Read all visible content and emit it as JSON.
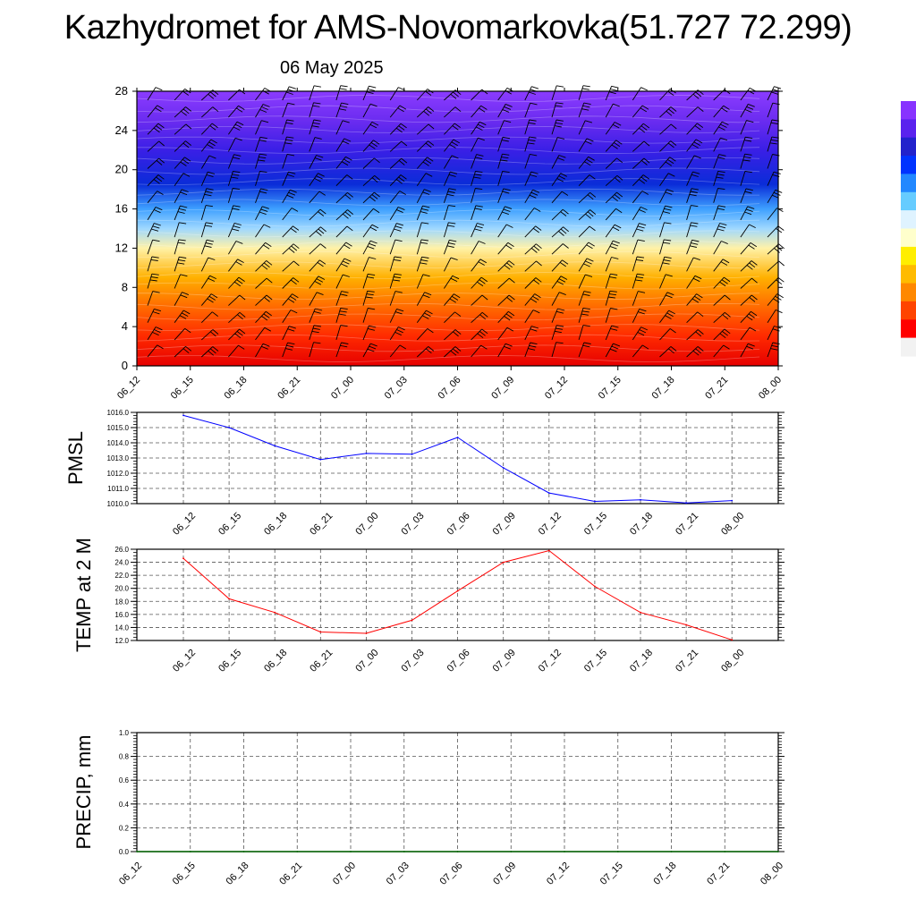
{
  "header": {
    "title": "Kazhydromet for AMS-Novomarkovka(51.727 72.299)",
    "date": "06 May 2025"
  },
  "colorbar": {
    "colors": [
      "#f2f2f2",
      "#ff0000",
      "#ff4400",
      "#ff8800",
      "#ffbb00",
      "#ffee00",
      "#ffffcc",
      "#dff3ff",
      "#66ccff",
      "#2288ff",
      "#0033ff",
      "#2222cc",
      "#5a22ee",
      "#8833ff"
    ]
  },
  "chart_data": [
    {
      "type": "heatmap",
      "panel": "cross-section",
      "x_ticks": [
        "06_12",
        "06_15",
        "06_18",
        "06_21",
        "07_00",
        "07_03",
        "07_06",
        "07_09",
        "07_12",
        "07_15",
        "07_18",
        "07_21",
        "08_00"
      ],
      "y_ticks": [
        0,
        4,
        8,
        12,
        16,
        20,
        24,
        28
      ],
      "ylim": [
        0,
        28
      ],
      "color_by_level": [
        {
          "level": 0,
          "color": "#e60000"
        },
        {
          "level": 3,
          "color": "#ff2a00"
        },
        {
          "level": 6,
          "color": "#ff6a00"
        },
        {
          "level": 9,
          "color": "#ffb000"
        },
        {
          "level": 12,
          "color": "#fff2a8"
        },
        {
          "level": 14,
          "color": "#9fd8ff"
        },
        {
          "level": 16,
          "color": "#3ea0ff"
        },
        {
          "level": 18.5,
          "color": "#0a2cd8"
        },
        {
          "level": 22,
          "color": "#3a1fe6"
        },
        {
          "level": 25,
          "color": "#6b2cf0"
        },
        {
          "level": 28,
          "color": "#8b3cff"
        }
      ],
      "grid": false
    },
    {
      "type": "line",
      "ylabel": "PMSL",
      "x_ticks": [
        "06_12",
        "06_15",
        "06_18",
        "06_21",
        "07_00",
        "07_03",
        "07_06",
        "07_09",
        "07_12",
        "07_15",
        "07_18",
        "07_21",
        "08_00"
      ],
      "x": [
        0,
        1,
        2,
        3,
        4,
        5,
        6,
        7,
        8,
        9,
        10,
        11,
        12
      ],
      "values": [
        1015.8,
        1015.0,
        1013.8,
        1012.9,
        1013.3,
        1013.25,
        1014.35,
        1012.35,
        1010.7,
        1010.15,
        1010.25,
        1010.05,
        1010.2
      ],
      "y_ticks": [
        "1010.0",
        "1011.0",
        "1012.0",
        "1013.0",
        "1014.0",
        "1015.0",
        "1016.0"
      ],
      "ylim": [
        1010,
        1016
      ],
      "color": "#0000ff",
      "grid": true
    },
    {
      "type": "line",
      "ylabel": "TEMP at 2 M",
      "x_ticks": [
        "06_12",
        "06_15",
        "06_18",
        "06_21",
        "07_00",
        "07_03",
        "07_06",
        "07_09",
        "07_12",
        "07_15",
        "07_18",
        "07_21",
        "08_00"
      ],
      "x": [
        0,
        1,
        2,
        3,
        4,
        5,
        6,
        7,
        8,
        9,
        10,
        11,
        12
      ],
      "values": [
        24.6,
        18.4,
        16.3,
        13.3,
        13.1,
        15.1,
        19.6,
        24.0,
        25.8,
        20.3,
        16.3,
        14.4,
        12.1
      ],
      "y_ticks": [
        "12.0",
        "14.0",
        "16.0",
        "18.0",
        "20.0",
        "22.0",
        "24.0",
        "26.0"
      ],
      "ylim": [
        12,
        26
      ],
      "color": "#ff0000",
      "grid": true
    },
    {
      "type": "line",
      "ylabel": "PRECIP, mm",
      "x_ticks": [
        "06_12",
        "06_15",
        "06_18",
        "06_21",
        "07_00",
        "07_03",
        "07_06",
        "07_09",
        "07_12",
        "07_15",
        "07_18",
        "07_21",
        "08_00"
      ],
      "x": [
        0,
        1,
        2,
        3,
        4,
        5,
        6,
        7,
        8,
        9,
        10,
        11,
        12
      ],
      "values": [
        0,
        0,
        0,
        0,
        0,
        0,
        0,
        0,
        0,
        0,
        0,
        0,
        0
      ],
      "y_ticks": [
        "0.0",
        "0.2",
        "0.4",
        "0.6",
        "0.8",
        "1.0"
      ],
      "ylim": [
        0,
        1
      ],
      "color": "#006400",
      "grid": true
    }
  ]
}
